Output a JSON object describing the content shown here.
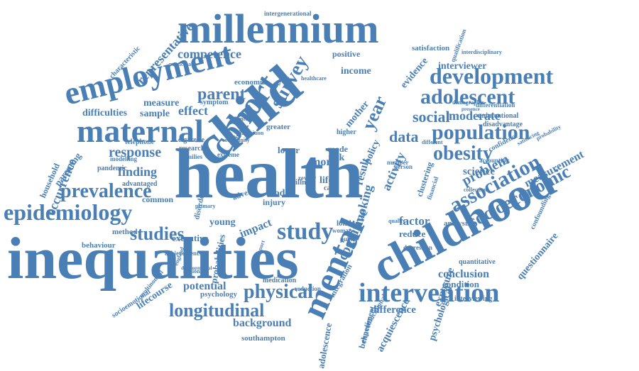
{
  "color": "#4a7fb5",
  "words": [
    {
      "text": "health"
    },
    {
      "text": "inequalities"
    },
    {
      "text": "child"
    },
    {
      "text": "childhood"
    },
    {
      "text": "millennium"
    },
    {
      "text": "cohort"
    },
    {
      "text": "employment"
    },
    {
      "text": "maternal"
    },
    {
      "text": "mental"
    },
    {
      "text": "intervention"
    },
    {
      "text": "development"
    },
    {
      "text": "adolescent"
    },
    {
      "text": "population"
    },
    {
      "text": "obesity"
    },
    {
      "text": "association"
    },
    {
      "text": "socioeconomic"
    },
    {
      "text": "epidemiology"
    },
    {
      "text": "prevalence"
    },
    {
      "text": "study"
    },
    {
      "text": "studies"
    },
    {
      "text": "physical"
    },
    {
      "text": "longitudinal"
    },
    {
      "text": "survey"
    },
    {
      "text": "parent"
    },
    {
      "text": "competence"
    },
    {
      "text": "representative"
    },
    {
      "text": "social"
    },
    {
      "text": "moderate"
    },
    {
      "text": "data"
    },
    {
      "text": "problem"
    },
    {
      "text": "response"
    },
    {
      "text": "finding"
    },
    {
      "text": "occurrence"
    },
    {
      "text": "cognitive"
    },
    {
      "text": "measurement"
    },
    {
      "text": "year"
    },
    {
      "text": "interviewer"
    },
    {
      "text": "evidence"
    },
    {
      "text": "income"
    },
    {
      "text": "positive"
    },
    {
      "text": "effect"
    },
    {
      "text": "measure"
    },
    {
      "text": "difficulties"
    },
    {
      "text": "sample"
    },
    {
      "text": "activity"
    },
    {
      "text": "smoking"
    },
    {
      "text": "impact"
    },
    {
      "text": "potential"
    },
    {
      "text": "background"
    },
    {
      "text": "conclusion"
    },
    {
      "text": "condition"
    },
    {
      "text": "difference"
    },
    {
      "text": "factor"
    },
    {
      "text": "reduce"
    },
    {
      "text": "analysis"
    },
    {
      "text": "questionnaire"
    },
    {
      "text": "exposure"
    },
    {
      "text": "psychological"
    },
    {
      "text": "acquiescence"
    },
    {
      "text": "adolescence"
    },
    {
      "text": "behavior"
    },
    {
      "text": "science"
    },
    {
      "text": "confounding"
    },
    {
      "text": "lifecourse"
    },
    {
      "text": "executive"
    },
    {
      "text": "young"
    },
    {
      "text": "common"
    },
    {
      "text": "method"
    },
    {
      "text": "behaviour"
    },
    {
      "text": "parenting"
    },
    {
      "text": "household"
    },
    {
      "text": "southampton"
    },
    {
      "text": "intergenerational"
    },
    {
      "text": "economic"
    },
    {
      "text": "symptom"
    },
    {
      "text": "characteristic"
    },
    {
      "text": "participant"
    },
    {
      "text": "satisfaction"
    },
    {
      "text": "qualification"
    },
    {
      "text": "interdisciplinary"
    },
    {
      "text": "differentiation"
    },
    {
      "text": "unintentional"
    },
    {
      "text": "disadvantage"
    },
    {
      "text": "demographic"
    },
    {
      "text": "telephone"
    },
    {
      "text": "cigarette"
    },
    {
      "text": "research"
    },
    {
      "text": "families"
    },
    {
      "text": "mother"
    },
    {
      "text": "policy"
    },
    {
      "text": "result"
    },
    {
      "text": "more"
    },
    {
      "text": "risk"
    },
    {
      "text": "mode"
    },
    {
      "text": "life"
    },
    {
      "text": "model"
    },
    {
      "text": "injury"
    },
    {
      "text": "disorder"
    },
    {
      "text": "probabilities"
    },
    {
      "text": "medication"
    },
    {
      "text": "socioemotional"
    },
    {
      "text": "psychology"
    },
    {
      "text": "multinomial"
    },
    {
      "text": "achievements"
    },
    {
      "text": "advantaged"
    },
    {
      "text": "pandemic"
    },
    {
      "text": "modelling"
    },
    {
      "text": "london"
    },
    {
      "text": "woman"
    },
    {
      "text": "depression"
    },
    {
      "text": "quantitative"
    },
    {
      "text": "interviewing"
    },
    {
      "text": "experiment"
    },
    {
      "text": "educational"
    },
    {
      "text": "integration"
    },
    {
      "text": "clustering"
    },
    {
      "text": "financial"
    },
    {
      "text": "accounting"
    },
    {
      "text": "collection"
    },
    {
      "text": "confidence"
    },
    {
      "text": "satisficing"
    },
    {
      "text": "probability"
    },
    {
      "text": "healthcare"
    },
    {
      "text": "lower"
    },
    {
      "text": "greater"
    },
    {
      "text": "higher"
    },
    {
      "text": "care"
    },
    {
      "text": "public"
    },
    {
      "text": "quality"
    },
    {
      "text": "adverse"
    },
    {
      "text": "illness"
    },
    {
      "text": "review"
    },
    {
      "text": "weight"
    },
    {
      "text": "extreme"
    },
    {
      "text": "reduction"
    },
    {
      "text": "number"
    },
    {
      "text": "person"
    },
    {
      "text": "different"
    },
    {
      "text": "presence"
    },
    {
      "text": "intervals"
    },
    {
      "text": "community"
    },
    {
      "text": "transition"
    },
    {
      "text": "developmental"
    },
    {
      "text": "support"
    },
    {
      "text": "primary"
    },
    {
      "text": "sectional"
    },
    {
      "text": "england"
    },
    {
      "text": "birth"
    }
  ]
}
